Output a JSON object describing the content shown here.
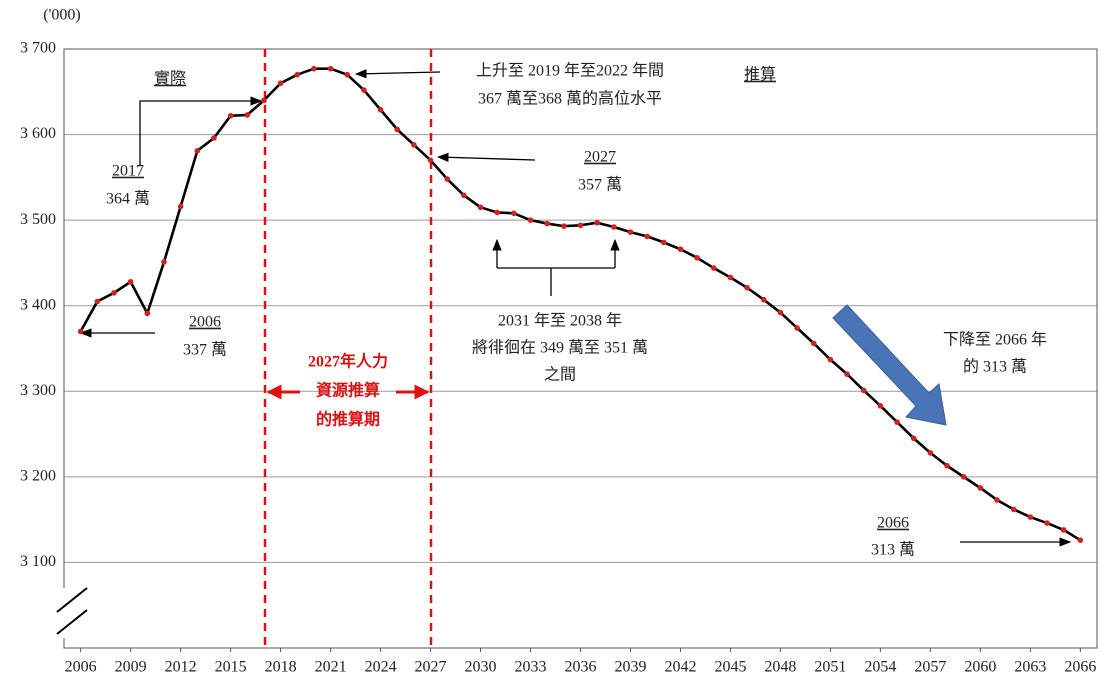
{
  "chart_data": {
    "type": "line",
    "x": [
      2006,
      2007,
      2008,
      2009,
      2010,
      2011,
      2012,
      2013,
      2014,
      2015,
      2016,
      2017,
      2018,
      2019,
      2020,
      2021,
      2022,
      2023,
      2024,
      2025,
      2026,
      2027,
      2028,
      2029,
      2030,
      2031,
      2032,
      2033,
      2034,
      2035,
      2036,
      2037,
      2038,
      2039,
      2040,
      2041,
      2042,
      2043,
      2044,
      2045,
      2046,
      2047,
      2048,
      2049,
      2050,
      2051,
      2052,
      2053,
      2054,
      2055,
      2056,
      2057,
      2058,
      2059,
      2060,
      2061,
      2062,
      2063,
      2064,
      2065,
      2066
    ],
    "series": [
      {
        "color": "#000000",
        "marker_color": "#d42020",
        "values": [
          3370,
          3405,
          3415,
          3428,
          3391,
          3451,
          3516,
          3581,
          3596,
          3622,
          3623,
          3640,
          3660,
          3670,
          3677,
          3677,
          3670,
          3652,
          3629,
          3606,
          3588,
          3570,
          3548,
          3529,
          3515,
          3509,
          3508,
          3500,
          3496,
          3493,
          3494,
          3497,
          3492,
          3486,
          3481,
          3474,
          3466,
          3456,
          3444,
          3433,
          3421,
          3407,
          3392,
          3374,
          3356,
          3337,
          3320,
          3301,
          3283,
          3264,
          3245,
          3228,
          3213,
          3200,
          3187,
          3173,
          3162,
          3153,
          3146,
          3138,
          3126
        ]
      }
    ],
    "xlim": [
      2005,
      2067
    ],
    "xticks": [
      2006,
      2009,
      2012,
      2015,
      2018,
      2021,
      2024,
      2027,
      2030,
      2033,
      2036,
      2039,
      2042,
      2045,
      2048,
      2051,
      2054,
      2057,
      2060,
      2063,
      2066
    ],
    "ylim": [
      3000,
      3700
    ],
    "yticks": [
      {
        "value": 3100,
        "label": "3 100"
      },
      {
        "value": 3200,
        "label": "3 200"
      },
      {
        "value": 3300,
        "label": "3 300"
      },
      {
        "value": 3400,
        "label": "3 400"
      },
      {
        "value": 3500,
        "label": "3 500"
      },
      {
        "value": 3600,
        "label": "3 600"
      },
      {
        "value": 3700,
        "label": "3 700"
      }
    ],
    "grid": true,
    "annotations": [
      {
        "lines": [
          "('000)"
        ]
      },
      {
        "lines": [
          "實際"
        ]
      },
      {
        "lines": [
          "推算"
        ]
      },
      {
        "lines": [
          "上升至 2019 年至2022 年間",
          "367 萬至368 萬的高位水平"
        ]
      },
      {
        "lines": [
          "2027",
          "357 萬"
        ]
      },
      {
        "lines": [
          "2017",
          "364 萬"
        ]
      },
      {
        "lines": [
          "2006",
          "337 萬"
        ]
      },
      {
        "lines": [
          "2031 年至 2038 年",
          "將徘徊在 349 萬至 351 萬",
          "之間"
        ]
      },
      {
        "lines": [
          "2027年人力",
          "資源推算",
          "的推算期"
        ]
      },
      {
        "lines": [
          "下降至 2066 年",
          "的 313 萬"
        ]
      },
      {
        "lines": [
          "2066",
          "313 萬"
        ]
      }
    ]
  }
}
